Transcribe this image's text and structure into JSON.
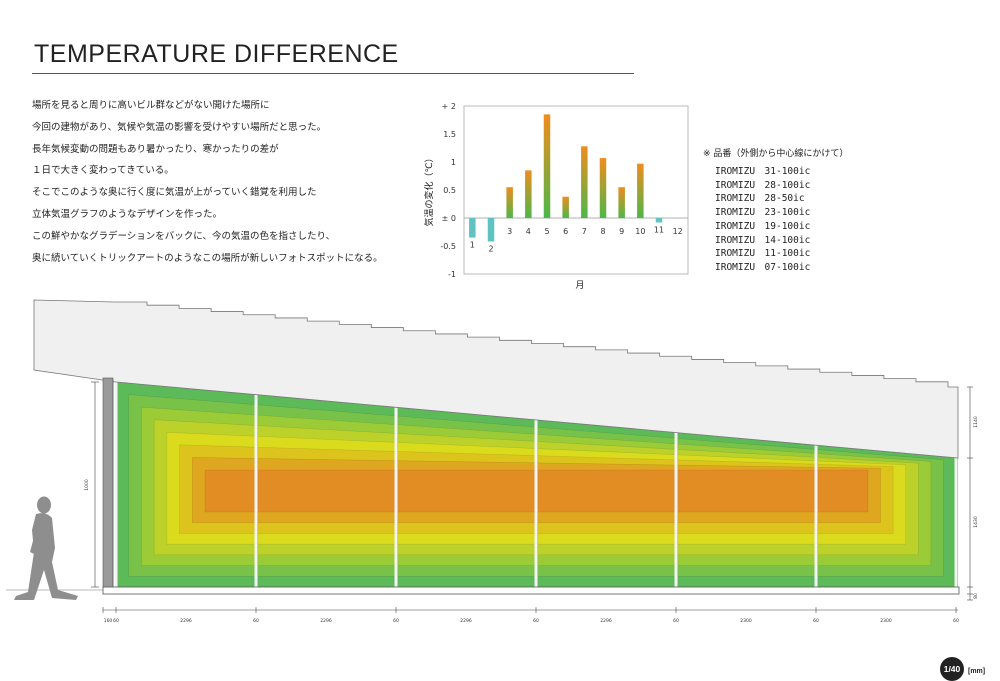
{
  "title": "TEMPERATURE DIFFERENCE",
  "body_lines": [
    "場所を見ると周りに高いビル群などがない開けた場所に",
    "今回の建物があり、気候や気温の影響を受けやすい場所だと思った。",
    "長年気候変動の問題もあり暑かったり、寒かったりの差が",
    "１日で大きく変わってきている。",
    "そこでこのような奥に行く度に気温が上がっていく錯覚を利用した",
    "立体気温グラフのようなデザインを作った。",
    "この鮮やかなグラデーションをバックに、今の気温の色を指さしたり、",
    "奥に続いていくトリックアートのようなこの場所が新しいフォトスポットになる。"
  ],
  "legend": {
    "heading": "※ 品番（外側から中心線にかけて）",
    "items": [
      "IROMIZU　31-100ic",
      "IROMIZU　28-100ic",
      "IROMIZU　28-50ic",
      "IROMIZU　23-100ic",
      "IROMIZU　19-100ic",
      "IROMIZU　14-100ic",
      "IROMIZU　11-100ic",
      "IROMIZU　07-100ic"
    ]
  },
  "chart_data": {
    "type": "bar",
    "categories": [
      "1",
      "2",
      "3",
      "4",
      "5",
      "6",
      "7",
      "8",
      "9",
      "10",
      "11",
      "12"
    ],
    "values": [
      -0.35,
      -0.42,
      0.55,
      0.85,
      1.85,
      0.38,
      1.28,
      1.07,
      0.55,
      0.97,
      -0.08,
      0
    ],
    "xlabel": "月",
    "ylabel": "気温の変化（℃）",
    "ylim": [
      -1,
      2
    ],
    "ytick_labels": [
      "+ 2",
      "1.5",
      "1",
      "0.5",
      "± 0",
      "-0.5",
      "-1"
    ],
    "ytick_values": [
      2,
      1.5,
      1,
      0.5,
      0,
      -0.5,
      -1
    ],
    "positive_gradient": [
      "#f08c1e",
      "#4cb848"
    ],
    "negative_color": "#5fc3c3"
  },
  "elevation": {
    "bands": [
      "#5cba59",
      "#79c24a",
      "#9ccb38",
      "#bcd22b",
      "#d9db1c",
      "#dcc41c",
      "#dfa61f",
      "#e28c24"
    ],
    "height_dims": [
      "1000",
      "1430",
      "1140",
      "80"
    ],
    "bottom_dims": [
      "160",
      "60",
      "2296",
      "60",
      "2296",
      "60",
      "2296",
      "60",
      "2296",
      "60",
      "2300",
      "60",
      "2300",
      "60"
    ]
  },
  "page": {
    "number": "1/40",
    "unit": "[mm]"
  }
}
